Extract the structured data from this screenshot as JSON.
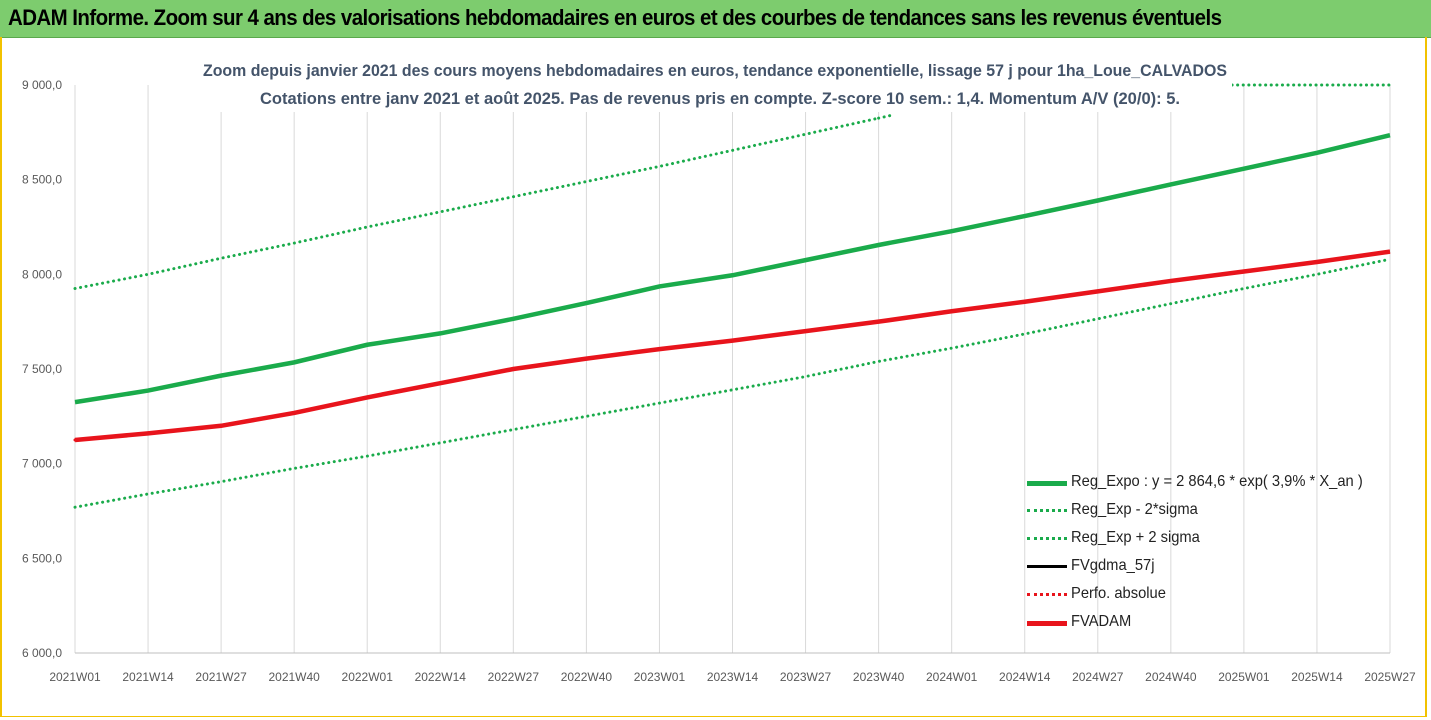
{
  "banner": {
    "title": "ADAM Informe. Zoom sur 4 ans des valorisations hebdomadaires en euros et des courbes de tendances sans les revenus éventuels"
  },
  "chart_data": {
    "type": "line",
    "title_line1": "Zoom depuis janvier 2021 des cours moyens hebdomadaires en euros, tendance exponentielle, lissage 57 j pour 1ha_Loue_CALVADOS",
    "title_line2": "Cotations entre janv 2021 et août 2025.  Pas de revenus pris en compte. Z-score 10 sem.: 1,4. Momentum A/V (20/0): 5.",
    "categories": [
      "2021W01",
      "2021W14",
      "2021W27",
      "2021W40",
      "2022W01",
      "2022W14",
      "2022W27",
      "2022W40",
      "2023W01",
      "2023W14",
      "2023W27",
      "2023W40",
      "2024W01",
      "2024W14",
      "2024W27",
      "2024W40",
      "2025W01",
      "2025W14",
      "2025W27"
    ],
    "ylim": [
      6000,
      9000
    ],
    "yticks": [
      "6 000,0",
      "6 500,0",
      "7 000,0",
      "7 500,0",
      "8 000,0",
      "8 500,0",
      "9 000,0"
    ],
    "grid": "vertical",
    "legend_position": "bottom-right",
    "series": [
      {
        "name": "Reg_Expo : y = 2 864,6 * exp( 3,9% *  X_an )",
        "color": "#1aab4b",
        "style": "solid-thick",
        "values": [
          7325,
          7386,
          7465,
          7535,
          7628,
          7688,
          7765,
          7848,
          7936,
          7995,
          8075,
          8155,
          8228,
          8308,
          8390,
          8475,
          8558,
          8642,
          8735
        ]
      },
      {
        "name": "Reg_Exp - 2*sigma",
        "color": "#1aab4b",
        "style": "dotted",
        "values": [
          6770,
          6840,
          6905,
          6975,
          7040,
          7110,
          7180,
          7250,
          7320,
          7390,
          7460,
          7540,
          7610,
          7685,
          7765,
          7845,
          7925,
          8000,
          8080
        ]
      },
      {
        "name": "Reg_Exp + 2 sigma",
        "color": "#1aab4b",
        "style": "dotted",
        "values": [
          7925,
          8000,
          8085,
          8165,
          8250,
          8330,
          8410,
          8490,
          8570,
          8655,
          8740,
          8825,
          null,
          null,
          null,
          null,
          null,
          null,
          null
        ],
        "cap_value": 9000
      },
      {
        "name": "FVgdma_57j",
        "color": "#000000",
        "style": "solid",
        "values": [
          7125,
          7160,
          7205,
          7270,
          7350,
          7425,
          7500,
          7555,
          7605,
          7650,
          7700,
          7750,
          7805,
          7855,
          7910,
          7965,
          8015,
          8065,
          8120
        ]
      },
      {
        "name": "Perfo. absolue",
        "color": "#e8141c",
        "style": "dotted",
        "values": [
          7125,
          7160,
          7200,
          7268,
          7350,
          7425,
          7500,
          7555,
          7605,
          7650,
          7700,
          7750,
          7805,
          7855,
          7910,
          7965,
          8015,
          8065,
          8120
        ]
      },
      {
        "name": "FVADAM",
        "color": "#e8141c",
        "style": "solid-thick",
        "values": [
          7125,
          7160,
          7200,
          7268,
          7350,
          7425,
          7500,
          7555,
          7605,
          7650,
          7700,
          7750,
          7805,
          7855,
          7910,
          7965,
          8015,
          8065,
          8120
        ]
      }
    ]
  }
}
